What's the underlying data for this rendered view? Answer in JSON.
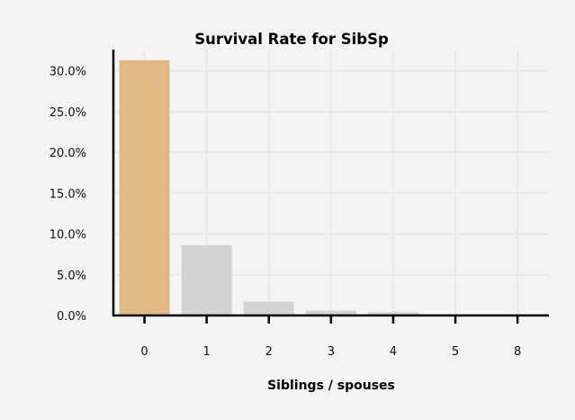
{
  "chart_data": {
    "type": "bar",
    "title": "Survival Rate for SibSp",
    "xlabel": "Siblings / spouses",
    "ylabel": "",
    "categories": [
      "0",
      "1",
      "2",
      "3",
      "4",
      "5",
      "8"
    ],
    "values": [
      31.3,
      8.6,
      1.7,
      0.6,
      0.4,
      0.0,
      0.0
    ],
    "ylim": [
      0,
      32.6
    ],
    "yticks": [
      0,
      5,
      10,
      15,
      20,
      25,
      30
    ],
    "ytick_labels": [
      "0.0%",
      "5.0%",
      "10.0%",
      "15.0%",
      "20.0%",
      "25.0%",
      "30.0%"
    ],
    "grid": true,
    "highlight_index": 0,
    "colors": {
      "highlight": "#e0b885",
      "default": "#d3d3d3",
      "background": "#f4f4f4",
      "grid": "#e9e9e9",
      "axis": "#000000"
    }
  }
}
